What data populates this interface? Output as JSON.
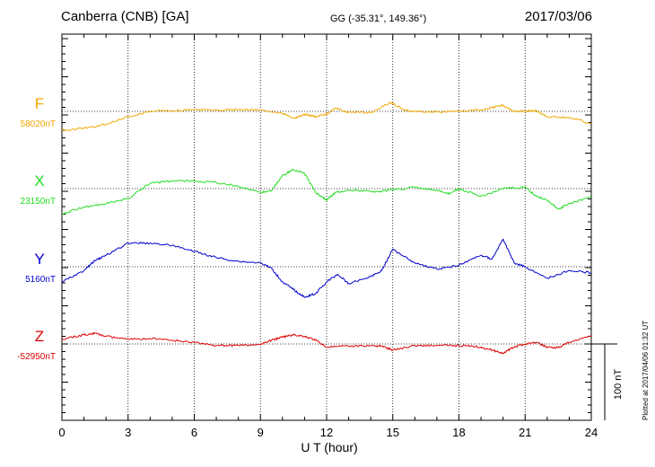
{
  "header": {
    "station": "Canberra (CNB)  [GA]",
    "coords": "GG (-35.31°, 149.36°)",
    "date": "2017/03/06"
  },
  "footer_note": "Plotted at 2017/04/06 01:32 UT",
  "scale_bar": {
    "label": "100 nT",
    "value": 100
  },
  "chart_data": {
    "type": "line",
    "xlabel": "U T (hour)",
    "xlim": [
      0,
      24
    ],
    "xticks": [
      "0",
      "3",
      "6",
      "9",
      "12",
      "15",
      "18",
      "21",
      "24"
    ],
    "grid": true,
    "scale_nT_per_100": 100,
    "series": [
      {
        "name": "F",
        "baseline_label": "58020nT",
        "color": "#f0a800",
        "x": [
          0,
          1,
          2,
          3,
          4,
          5,
          6,
          7,
          8,
          9,
          10,
          10.6,
          11,
          11.5,
          12,
          12.4,
          13,
          14,
          14.9,
          15.5,
          16,
          17,
          18,
          19,
          19.5,
          20,
          20.5,
          21,
          21.5,
          22,
          23,
          24
        ],
        "y": [
          -25,
          -22,
          -17,
          -7,
          0,
          1,
          2,
          2,
          2,
          2,
          -3,
          -9,
          -4,
          -7,
          -4,
          4,
          -1,
          -2,
          12,
          2,
          0,
          -1,
          0,
          2,
          5,
          8,
          0,
          0,
          1,
          -7,
          -8,
          -16
        ]
      },
      {
        "name": "X",
        "baseline_label": "23150nT",
        "color": "#22dd22",
        "x": [
          0,
          1,
          2,
          3,
          4,
          5,
          6,
          7,
          8,
          9,
          9.5,
          10,
          10.5,
          11,
          11.5,
          12,
          12.4,
          13,
          14,
          15,
          16,
          17,
          17.5,
          18,
          19,
          20,
          21,
          21.5,
          22,
          22.5,
          23,
          24
        ],
        "y": [
          -33,
          -24,
          -20,
          -13,
          7,
          10,
          10,
          8,
          3,
          -5,
          -3,
          17,
          25,
          20,
          -5,
          -15,
          -5,
          -2,
          -4,
          -2,
          2,
          -2,
          -7,
          0,
          -10,
          0,
          2,
          -10,
          -15,
          -27,
          -20,
          -10
        ]
      },
      {
        "name": "Y",
        "baseline_label": "5160nT",
        "color": "#0000cc",
        "x": [
          0,
          1,
          1.5,
          2,
          3,
          4,
          5,
          6,
          7,
          8,
          9,
          9.5,
          10,
          10.5,
          11,
          11.5,
          12,
          12.5,
          13,
          14,
          14.5,
          15,
          16,
          17,
          18,
          19,
          19.5,
          20,
          20.5,
          21,
          22,
          23,
          24
        ],
        "y": [
          -20,
          -5,
          8,
          15,
          31,
          31,
          28,
          20,
          12,
          7,
          5,
          -2,
          -20,
          -30,
          -40,
          -35,
          -20,
          -10,
          -22,
          -13,
          -5,
          23,
          5,
          -3,
          2,
          15,
          10,
          36,
          5,
          0,
          -15,
          -5,
          -8
        ]
      },
      {
        "name": "Z",
        "baseline_label": "-52950nT",
        "color": "#dd0000",
        "x": [
          0,
          1,
          1.5,
          2,
          3,
          4,
          5,
          6,
          7,
          8,
          9,
          9.5,
          10,
          10.5,
          11,
          11.5,
          12,
          13,
          14,
          14.5,
          15,
          16,
          17,
          18,
          19,
          19.5,
          20,
          20.5,
          21,
          21.5,
          22,
          22.5,
          23,
          24
        ],
        "y": [
          6,
          12,
          14,
          10,
          6,
          7,
          5,
          2,
          -2,
          -2,
          -1,
          5,
          9,
          12,
          10,
          5,
          -4,
          -3,
          -2,
          -3,
          -8,
          -2,
          -2,
          -2,
          -4,
          -8,
          -12,
          -4,
          0,
          2,
          -4,
          -5,
          2,
          10
        ]
      }
    ]
  }
}
